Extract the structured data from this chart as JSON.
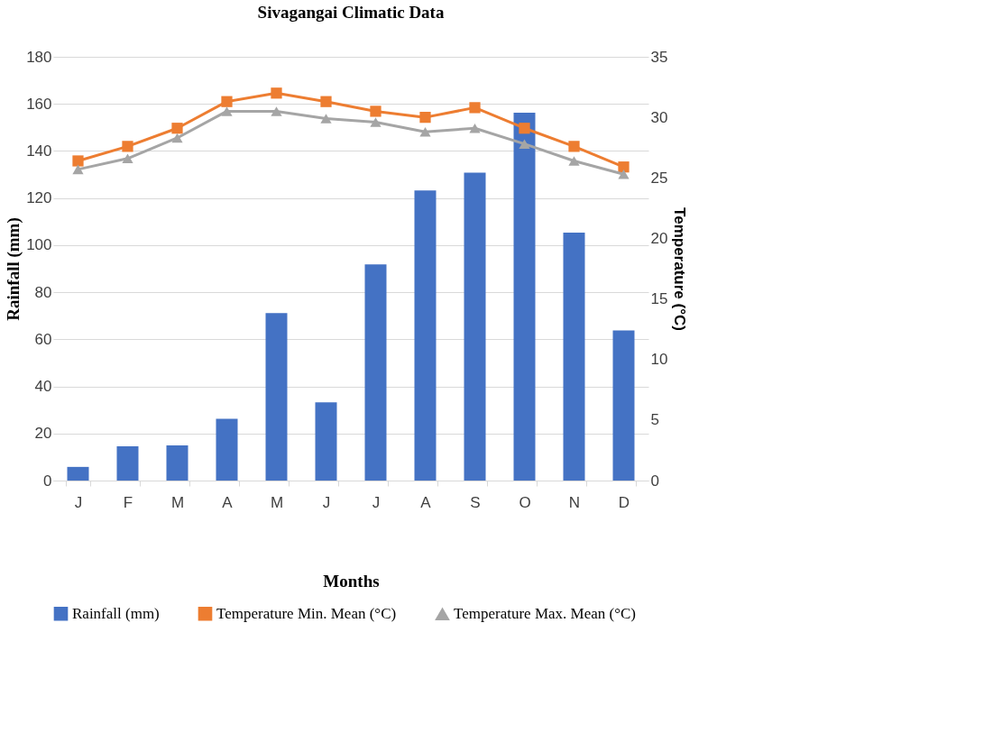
{
  "chart_data": {
    "type": "bar",
    "title": "Sivagangai Climatic Data",
    "xlabel": "Months",
    "ylabel": "Rainfall (mm)",
    "y2label": "Temperature (°C)",
    "categories": [
      "J",
      "F",
      "M",
      "A",
      "M",
      "J",
      "J",
      "A",
      "S",
      "O",
      "N",
      "D"
    ],
    "series": [
      {
        "name": "Rainfall (mm)",
        "color": "#4472c4",
        "values": [
          5.8,
          14.6,
          14.9,
          26.2,
          71.1,
          33.2,
          91.8,
          123.2,
          130.8,
          156.3,
          105.3,
          63.8
        ]
      },
      {
        "name": "Temperature Min. Mean (°C)",
        "type": "line",
        "axis": "y2",
        "marker": "square",
        "color": "#ed7d31",
        "values": [
          26.4,
          27.6,
          29.1,
          31.3,
          32.0,
          31.3,
          30.5,
          30.0,
          30.8,
          29.1,
          27.6,
          25.9
        ]
      },
      {
        "name": "Temperature Max. Mean (°C)",
        "type": "line",
        "axis": "y2",
        "marker": "triangle",
        "color": "#a5a5a5",
        "values": [
          25.7,
          26.6,
          28.3,
          30.5,
          30.5,
          29.9,
          29.6,
          28.8,
          29.1,
          27.8,
          26.4,
          25.3
        ]
      }
    ],
    "ylim": [
      0,
      180
    ],
    "yticks": [
      0,
      20,
      40,
      60,
      80,
      100,
      120,
      140,
      160,
      180
    ],
    "y2lim": [
      0,
      35
    ],
    "y2ticks": [
      0,
      5,
      10,
      15,
      20,
      25,
      30,
      35
    ],
    "grid": "y",
    "legend": "bottom",
    "line_style": "solid"
  }
}
